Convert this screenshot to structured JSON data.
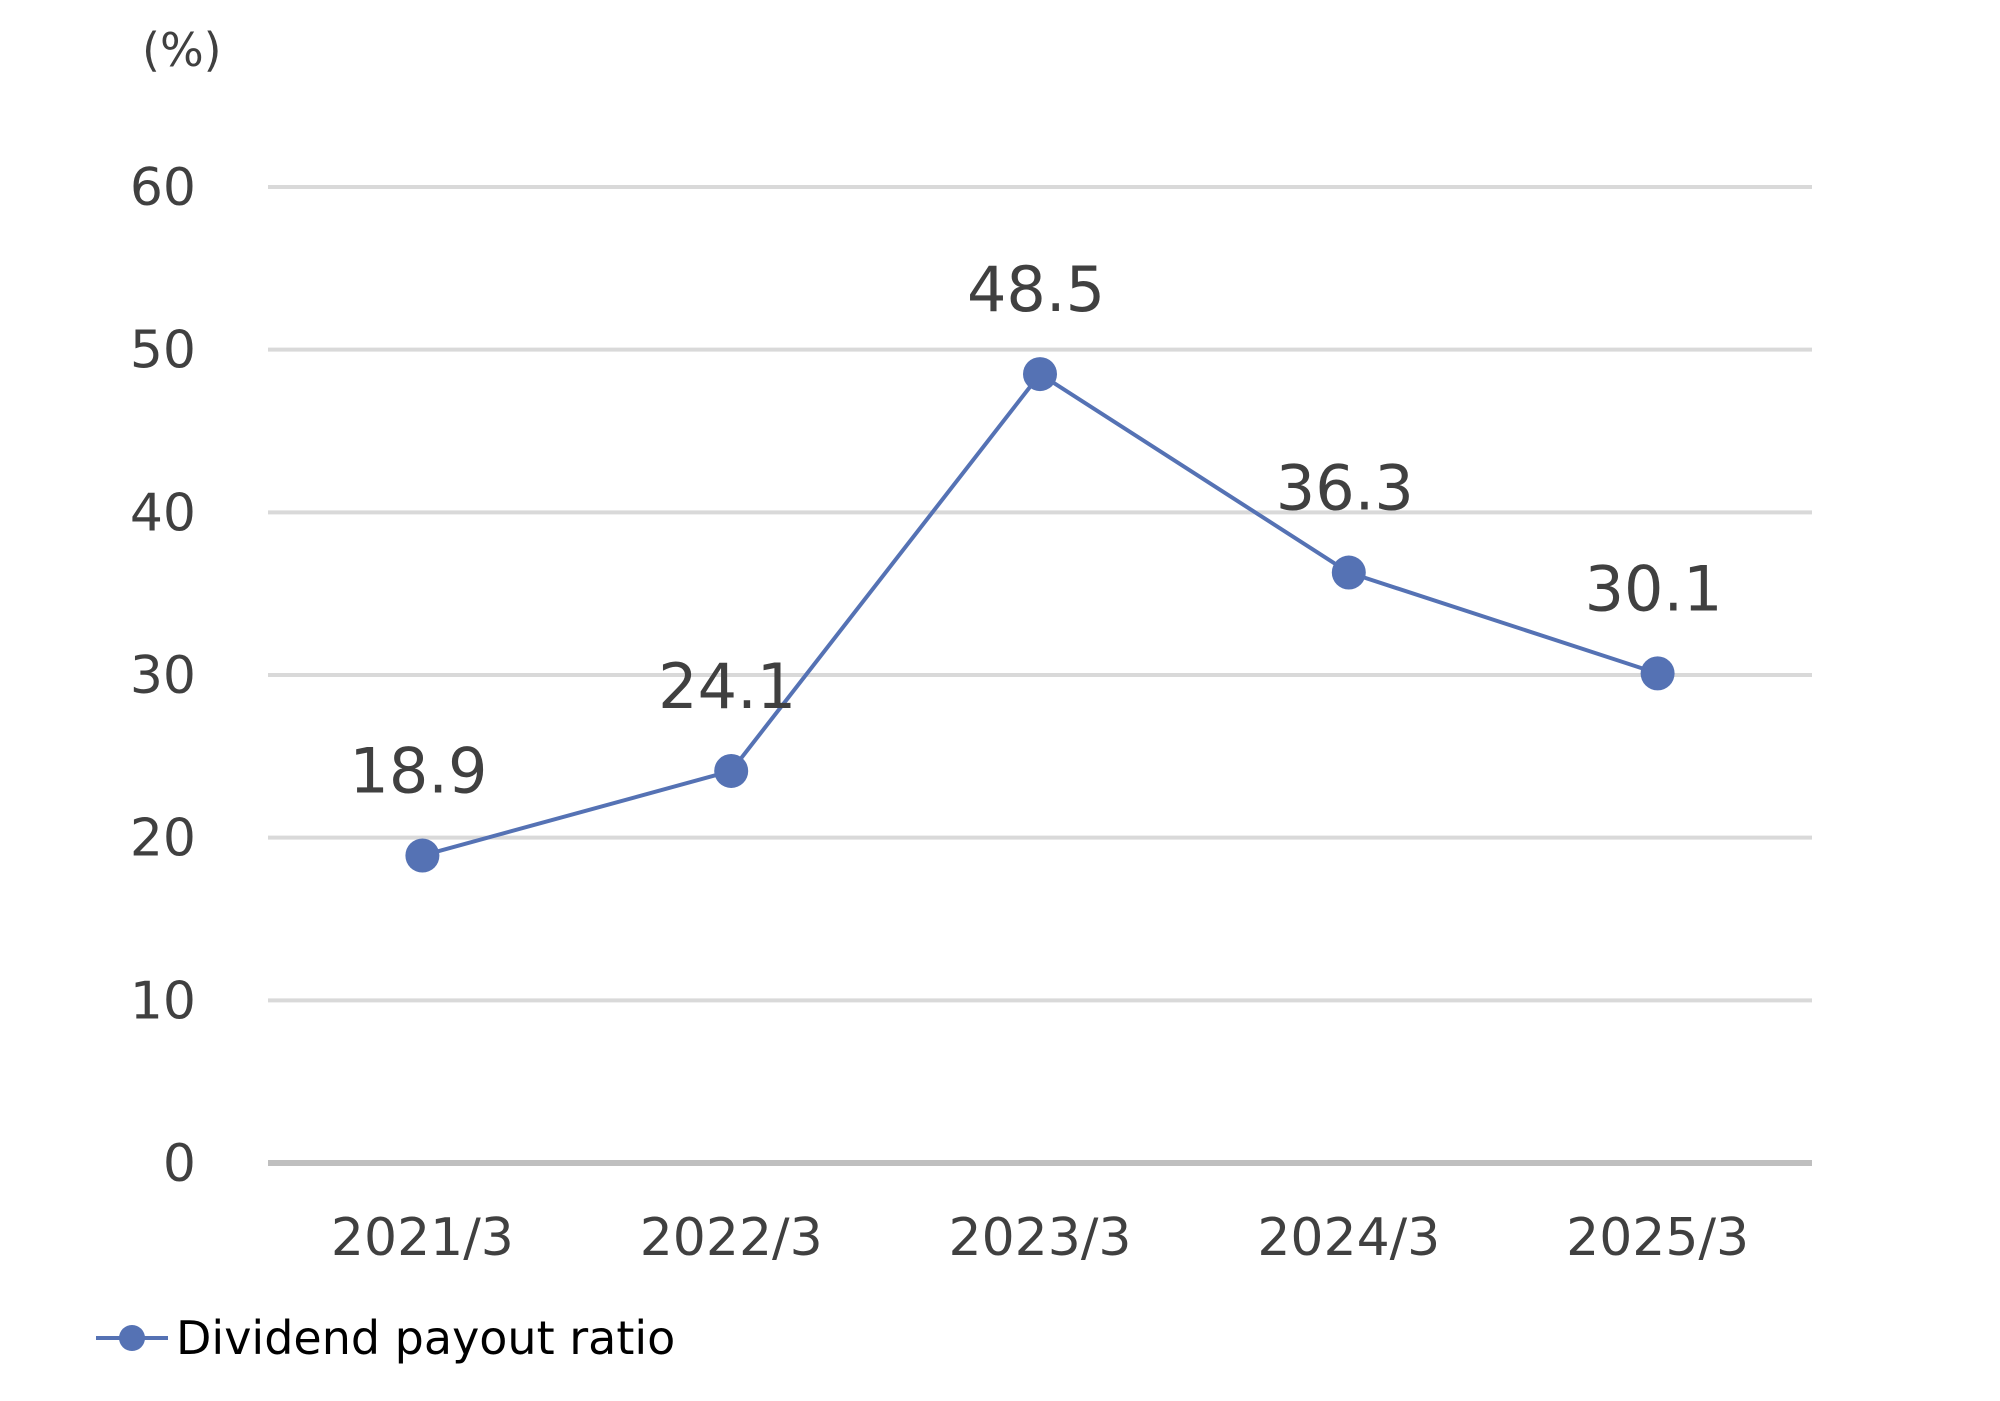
{
  "chart_data": {
    "type": "line",
    "unit_label": "(%)",
    "categories": [
      "2021/3",
      "2022/3",
      "2023/3",
      "2024/3",
      "2025/3"
    ],
    "series": [
      {
        "name": "Dividend payout ratio",
        "values": [
          18.9,
          24.1,
          48.5,
          36.3,
          30.1
        ],
        "data_labels": [
          "18.9",
          "24.1",
          "48.5",
          "36.3",
          "30.1"
        ],
        "color": "#5572b4"
      }
    ],
    "ylim": [
      0,
      60
    ],
    "yticks": [
      0,
      10,
      20,
      30,
      40,
      50,
      60
    ],
    "ytick_labels": [
      "0",
      "10",
      "20",
      "30",
      "40",
      "50",
      "60"
    ],
    "grid": true,
    "legend_position": "bottom-left",
    "colors": {
      "gridline": "#d9d9d9",
      "baseline": "#bfbfbf",
      "text": "#404040"
    }
  }
}
